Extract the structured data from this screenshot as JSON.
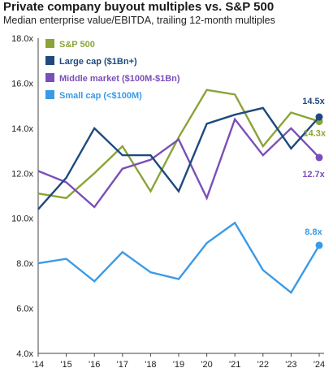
{
  "chart_data": {
    "type": "line",
    "title": "Private company buyout multiples vs. S&P 500",
    "subtitle": "Median enterprise value/EBITDA, trailing 12-month multiples",
    "xlabel": "",
    "ylabel": "",
    "x": [
      "'14",
      "'15",
      "'16",
      "'17",
      "'18",
      "'19",
      "'20",
      "'21",
      "'22",
      "'23",
      "'24"
    ],
    "ylim": [
      4.0,
      18.0
    ],
    "yticks": [
      "4.0x",
      "6.0x",
      "8.0x",
      "10.0x",
      "12.0x",
      "14.0x",
      "16.0x",
      "18.0x"
    ],
    "legend_position": "top-left",
    "grid": false,
    "series": [
      {
        "name": "S&P 500",
        "color": "#8aa437",
        "values": [
          11.1,
          10.9,
          12.0,
          13.2,
          11.2,
          13.6,
          15.7,
          15.5,
          13.2,
          14.7,
          14.3
        ],
        "end_label": "14.3x"
      },
      {
        "name": "Large cap ($1Bn+)",
        "color": "#1e4a7e",
        "values": [
          10.4,
          11.8,
          14.0,
          12.8,
          12.8,
          11.2,
          14.2,
          14.6,
          14.9,
          13.1,
          14.5
        ],
        "end_label": "14.5x"
      },
      {
        "name": "Middle market ($100M-$1Bn)",
        "color": "#7b4fb8",
        "values": [
          12.1,
          11.6,
          10.5,
          12.2,
          12.6,
          13.5,
          10.9,
          14.4,
          12.8,
          14.0,
          12.7
        ],
        "end_label": "12.7x"
      },
      {
        "name": "Small cap (<$100M)",
        "color": "#3a9ae6",
        "values": [
          8.0,
          8.2,
          7.2,
          8.5,
          7.6,
          7.3,
          8.9,
          9.8,
          7.7,
          6.7,
          8.8
        ],
        "end_label": "8.8x"
      }
    ]
  }
}
